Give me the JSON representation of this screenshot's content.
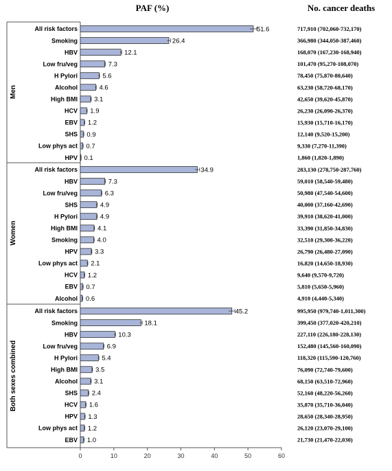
{
  "header": {
    "paf_title": "PAF (%)",
    "deaths_title": "No. cancer deaths"
  },
  "colors": {
    "bar_fill": "#a8b4d8",
    "bar_stroke": "#333333",
    "frame": "#555555"
  },
  "chart_data": {
    "type": "bar",
    "orientation": "horizontal",
    "xlim": [
      0,
      60
    ],
    "xticks": [
      0,
      10,
      20,
      30,
      40,
      50,
      60
    ],
    "grid": false,
    "error_bars": true,
    "groups": [
      {
        "name": "Men",
        "rows": [
          {
            "label": "All risk factors",
            "value": 51.6,
            "value_label": "51.6",
            "deaths": "717,910 (702,060-732,170)"
          },
          {
            "label": "Smoking",
            "value": 26.4,
            "value_label": "26.4",
            "deaths": "366,980 (344,050-387,460)"
          },
          {
            "label": "HBV",
            "value": 12.1,
            "value_label": "12.1",
            "deaths": "168,070 (167,230-168,940)"
          },
          {
            "label": "Low fru/veg",
            "value": 7.3,
            "value_label": "7.3",
            "deaths": "101,470 (95,270-108,070)"
          },
          {
            "label": "H Pylori",
            "value": 5.6,
            "value_label": "5.6",
            "deaths": "78,450 (75,870-80,640)"
          },
          {
            "label": "Alcohol",
            "value": 4.6,
            "value_label": "4.6",
            "deaths": "63,230 (58,720-68,170)"
          },
          {
            "label": "High BMI",
            "value": 3.1,
            "value_label": "3.1",
            "deaths": "42,650 (39,620-45,870)"
          },
          {
            "label": "HCV",
            "value": 1.9,
            "value_label": "1.9",
            "deaths": "26,230 (26,090-26,370)"
          },
          {
            "label": "EBV",
            "value": 1.2,
            "value_label": "1.2",
            "deaths": "15,930 (15,710-16,170)"
          },
          {
            "label": "SHS",
            "value": 0.9,
            "value_label": "0.9",
            "deaths": "12,140 (9,520-15,200)"
          },
          {
            "label": "Low phys act",
            "value": 0.7,
            "value_label": "0.7",
            "deaths": "9,330 (7,270-11,390)"
          },
          {
            "label": "HPV",
            "value": 0.1,
            "value_label": "0.1",
            "deaths": "1,860 (1,820-1,890)"
          }
        ]
      },
      {
        "name": "Women",
        "rows": [
          {
            "label": "All risk factors",
            "value": 34.9,
            "value_label": "34.9",
            "deaths": "283,130 (278,750-287,760)"
          },
          {
            "label": "HBV",
            "value": 7.3,
            "value_label": "7.3",
            "deaths": "59,010 (58,540-59,480)"
          },
          {
            "label": "Low fru/veg",
            "value": 6.3,
            "value_label": "6.3",
            "deaths": "50,980 (47,540-54,600)"
          },
          {
            "label": "SHS",
            "value": 4.9,
            "value_label": "4.9",
            "deaths": "40,000 (37,160-42,690)"
          },
          {
            "label": "H Pylori",
            "value": 4.9,
            "value_label": "4.9",
            "deaths": "39,910 (38,620-41,000)"
          },
          {
            "label": "High BMI",
            "value": 4.1,
            "value_label": "4.1",
            "deaths": "33,390 (31,850-34,830)"
          },
          {
            "label": "Smoking",
            "value": 4.0,
            "value_label": "4.0",
            "deaths": "32,510 (29,300-36,220)"
          },
          {
            "label": "HPV",
            "value": 3.3,
            "value_label": "3.3",
            "deaths": "26,790 (26,480-27,090)"
          },
          {
            "label": "Low phys act",
            "value": 2.1,
            "value_label": "2.1",
            "deaths": "16,820 (14,650-18,930)"
          },
          {
            "label": "HCV",
            "value": 1.2,
            "value_label": "1.2",
            "deaths": "9,640 (9,570-9,720)"
          },
          {
            "label": "EBV",
            "value": 0.7,
            "value_label": "0.7",
            "deaths": "5,810 (5,650-5,960)"
          },
          {
            "label": "Alcohol",
            "value": 0.6,
            "value_label": "0.6",
            "deaths": "4,910 (4,440-5,340)"
          }
        ]
      },
      {
        "name": "Both sexes combined",
        "rows": [
          {
            "label": "All risk factors",
            "value": 45.2,
            "value_label": "45.2",
            "deaths": "995,950 (979,740-1,011,300)"
          },
          {
            "label": "Smoking",
            "value": 18.1,
            "value_label": "18.1",
            "deaths": "399,450 (377,020-420,210)"
          },
          {
            "label": "HBV",
            "value": 10.3,
            "value_label": "10.3",
            "deaths": "227,110 (226,180-228,130)"
          },
          {
            "label": "Low fru/veg",
            "value": 6.9,
            "value_label": "6.9",
            "deaths": "152,480 (145,560-160,090)"
          },
          {
            "label": "H Pylori",
            "value": 5.4,
            "value_label": "5.4",
            "deaths": "118,320 (115,590-120,760)"
          },
          {
            "label": "High BMI",
            "value": 3.5,
            "value_label": "3.5",
            "deaths": "76,090 (72,740-79,600)"
          },
          {
            "label": "Alcohol",
            "value": 3.1,
            "value_label": "3.1",
            "deaths": "68,150 (63,510-72,960)"
          },
          {
            "label": "SHS",
            "value": 2.4,
            "value_label": "2.4",
            "deaths": "52,160 (48,220-56,260)"
          },
          {
            "label": "HCV",
            "value": 1.6,
            "value_label": "1.6",
            "deaths": "35,870 (35,710-36,040)"
          },
          {
            "label": "HPV",
            "value": 1.3,
            "value_label": "1.3",
            "deaths": "28,650 (28,340-28,950)"
          },
          {
            "label": "Low phys act",
            "value": 1.2,
            "value_label": "1.2",
            "deaths": "26,120 (23,070-29,100)"
          },
          {
            "label": "EBV",
            "value": 1.0,
            "value_label": "1.0",
            "deaths": "21,730 (21,470-22,030)"
          }
        ]
      }
    ]
  }
}
